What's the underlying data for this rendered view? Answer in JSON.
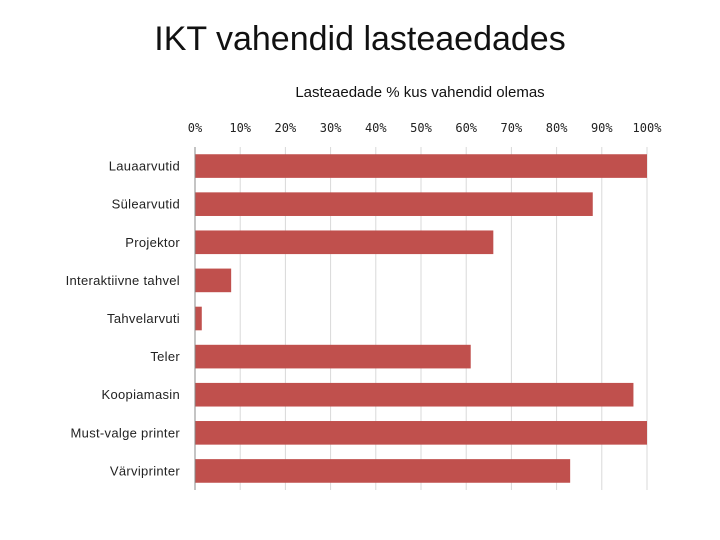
{
  "slide": {
    "title": "IKT vahendid lasteaedades"
  },
  "chart_data": {
    "type": "bar",
    "orientation": "horizontal",
    "title": "Lasteaedade % kus vahendid olemas",
    "xlabel": "",
    "ylabel": "",
    "xlim": [
      0,
      100
    ],
    "x_ticks": [
      "0%",
      "10%",
      "20%",
      "30%",
      "40%",
      "50%",
      "60%",
      "70%",
      "80%",
      "90%",
      "100%"
    ],
    "grid": true,
    "legend": "none",
    "bar_color": "#c0504d",
    "categories": [
      "Lauaarvutid",
      "Sülearvutid",
      "Projektor",
      "Interaktiivne tahvel",
      "Tahvelarvuti",
      "Teler",
      "Koopiamasin",
      "Must-valge printer",
      "Värviprinter"
    ],
    "values": [
      100,
      88,
      66,
      8,
      1.5,
      61,
      97,
      100,
      83
    ]
  }
}
